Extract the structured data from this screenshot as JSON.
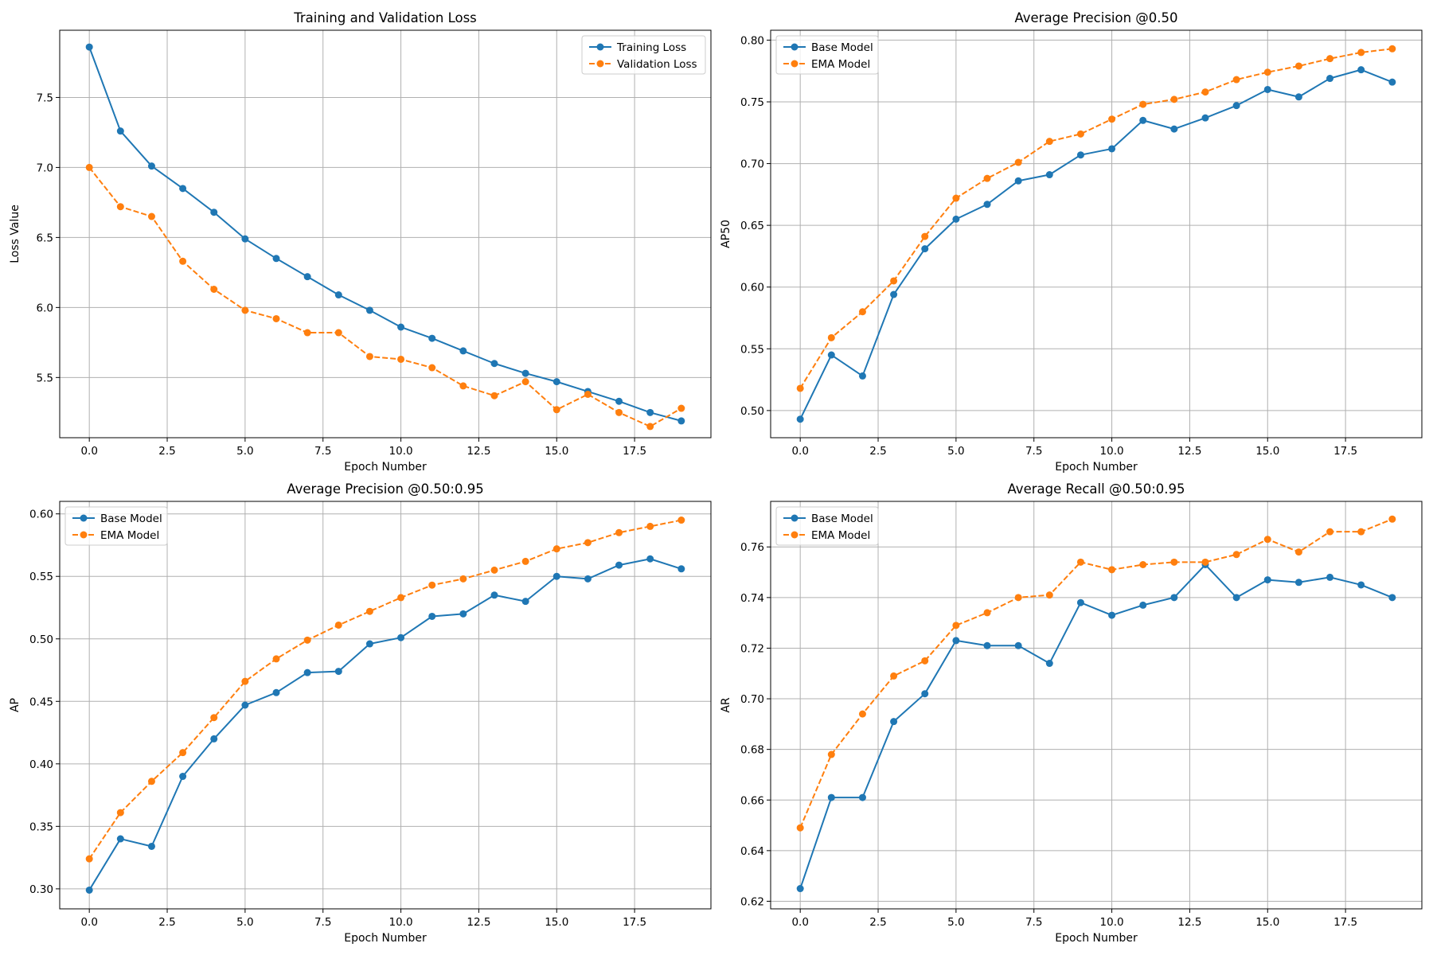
{
  "figure": {
    "colors": {
      "series_primary": "#1f77b4",
      "series_secondary": "#ff7f0e",
      "grid": "#b0b0b0",
      "axes": "#000000",
      "background": "#ffffff"
    }
  },
  "chart_data": [
    {
      "id": "loss",
      "type": "line",
      "title": "Training and Validation Loss",
      "xlabel": "Epoch Number",
      "ylabel": "Loss Value",
      "xlim": [
        -0.95,
        19.95
      ],
      "ylim": [
        5.07,
        7.98
      ],
      "xticks": [
        0,
        2.5,
        5,
        7.5,
        10,
        12.5,
        15,
        17.5
      ],
      "xtick_labels": [
        "0.0",
        "2.5",
        "5.0",
        "7.5",
        "10.0",
        "12.5",
        "15.0",
        "17.5"
      ],
      "yticks": [
        5.5,
        6.0,
        6.5,
        7.0,
        7.5
      ],
      "ytick_labels": [
        "5.5",
        "6.0",
        "6.5",
        "7.0",
        "7.5"
      ],
      "grid": true,
      "legend_position": "upper right",
      "x": [
        0,
        1,
        2,
        3,
        4,
        5,
        6,
        7,
        8,
        9,
        10,
        11,
        12,
        13,
        14,
        15,
        16,
        17,
        18,
        19
      ],
      "series": [
        {
          "name": "Training Loss",
          "style": "solid",
          "color": "#1f77b4",
          "values": [
            7.86,
            7.26,
            7.01,
            6.85,
            6.68,
            6.49,
            6.35,
            6.22,
            6.09,
            5.98,
            5.86,
            5.78,
            5.69,
            5.6,
            5.53,
            5.47,
            5.4,
            5.33,
            5.25,
            5.19
          ]
        },
        {
          "name": "Validation Loss",
          "style": "dashed",
          "color": "#ff7f0e",
          "values": [
            7.0,
            6.72,
            6.65,
            6.33,
            6.13,
            5.98,
            5.92,
            5.82,
            5.82,
            5.65,
            5.63,
            5.57,
            5.44,
            5.37,
            5.47,
            5.27,
            5.38,
            5.25,
            5.15,
            5.28
          ]
        }
      ]
    },
    {
      "id": "ap50",
      "type": "line",
      "title": "Average Precision @0.50",
      "xlabel": "Epoch Number",
      "ylabel": "AP50",
      "xlim": [
        -0.95,
        19.95
      ],
      "ylim": [
        0.478,
        0.808
      ],
      "xticks": [
        0,
        2.5,
        5,
        7.5,
        10,
        12.5,
        15,
        17.5
      ],
      "xtick_labels": [
        "0.0",
        "2.5",
        "5.0",
        "7.5",
        "10.0",
        "12.5",
        "15.0",
        "17.5"
      ],
      "yticks": [
        0.5,
        0.55,
        0.6,
        0.65,
        0.7,
        0.75,
        0.8
      ],
      "ytick_labels": [
        "0.50",
        "0.55",
        "0.60",
        "0.65",
        "0.70",
        "0.75",
        "0.80"
      ],
      "grid": true,
      "legend_position": "upper left",
      "x": [
        0,
        1,
        2,
        3,
        4,
        5,
        6,
        7,
        8,
        9,
        10,
        11,
        12,
        13,
        14,
        15,
        16,
        17,
        18,
        19
      ],
      "series": [
        {
          "name": "Base Model",
          "style": "solid",
          "color": "#1f77b4",
          "values": [
            0.493,
            0.545,
            0.528,
            0.594,
            0.631,
            0.655,
            0.667,
            0.686,
            0.691,
            0.707,
            0.712,
            0.735,
            0.728,
            0.737,
            0.747,
            0.76,
            0.754,
            0.769,
            0.776,
            0.766
          ]
        },
        {
          "name": "EMA Model",
          "style": "dashed",
          "color": "#ff7f0e",
          "values": [
            0.518,
            0.559,
            0.58,
            0.605,
            0.641,
            0.672,
            0.688,
            0.701,
            0.718,
            0.724,
            0.736,
            0.748,
            0.752,
            0.758,
            0.768,
            0.774,
            0.779,
            0.785,
            0.79,
            0.793
          ]
        }
      ]
    },
    {
      "id": "ap",
      "type": "line",
      "title": "Average Precision @0.50:0.95",
      "xlabel": "Epoch Number",
      "ylabel": "AP",
      "xlim": [
        -0.95,
        19.95
      ],
      "ylim": [
        0.284,
        0.61
      ],
      "xticks": [
        0,
        2.5,
        5,
        7.5,
        10,
        12.5,
        15,
        17.5
      ],
      "xtick_labels": [
        "0.0",
        "2.5",
        "5.0",
        "7.5",
        "10.0",
        "12.5",
        "15.0",
        "17.5"
      ],
      "yticks": [
        0.3,
        0.35,
        0.4,
        0.45,
        0.5,
        0.55,
        0.6
      ],
      "ytick_labels": [
        "0.30",
        "0.35",
        "0.40",
        "0.45",
        "0.50",
        "0.55",
        "0.60"
      ],
      "grid": true,
      "legend_position": "upper left",
      "x": [
        0,
        1,
        2,
        3,
        4,
        5,
        6,
        7,
        8,
        9,
        10,
        11,
        12,
        13,
        14,
        15,
        16,
        17,
        18,
        19
      ],
      "series": [
        {
          "name": "Base Model",
          "style": "solid",
          "color": "#1f77b4",
          "values": [
            0.299,
            0.34,
            0.334,
            0.39,
            0.42,
            0.447,
            0.457,
            0.473,
            0.474,
            0.496,
            0.501,
            0.518,
            0.52,
            0.535,
            0.53,
            0.55,
            0.548,
            0.559,
            0.564,
            0.556
          ]
        },
        {
          "name": "EMA Model",
          "style": "dashed",
          "color": "#ff7f0e",
          "values": [
            0.324,
            0.361,
            0.386,
            0.409,
            0.437,
            0.466,
            0.484,
            0.499,
            0.511,
            0.522,
            0.533,
            0.543,
            0.548,
            0.555,
            0.562,
            0.572,
            0.577,
            0.585,
            0.59,
            0.595
          ]
        }
      ]
    },
    {
      "id": "ar",
      "type": "line",
      "title": "Average Recall @0.50:0.95",
      "xlabel": "Epoch Number",
      "ylabel": "AR",
      "xlim": [
        -0.95,
        19.95
      ],
      "ylim": [
        0.617,
        0.778
      ],
      "xticks": [
        0,
        2.5,
        5,
        7.5,
        10,
        12.5,
        15,
        17.5
      ],
      "xtick_labels": [
        "0.0",
        "2.5",
        "5.0",
        "7.5",
        "10.0",
        "12.5",
        "15.0",
        "17.5"
      ],
      "yticks": [
        0.62,
        0.64,
        0.66,
        0.68,
        0.7,
        0.72,
        0.74,
        0.76
      ],
      "ytick_labels": [
        "0.62",
        "0.64",
        "0.66",
        "0.68",
        "0.70",
        "0.72",
        "0.74",
        "0.76"
      ],
      "grid": true,
      "legend_position": "upper left",
      "x": [
        0,
        1,
        2,
        3,
        4,
        5,
        6,
        7,
        8,
        9,
        10,
        11,
        12,
        13,
        14,
        15,
        16,
        17,
        18,
        19
      ],
      "series": [
        {
          "name": "Base Model",
          "style": "solid",
          "color": "#1f77b4",
          "values": [
            0.625,
            0.661,
            0.661,
            0.691,
            0.702,
            0.723,
            0.721,
            0.721,
            0.714,
            0.738,
            0.733,
            0.737,
            0.74,
            0.753,
            0.74,
            0.747,
            0.746,
            0.748,
            0.745,
            0.74
          ]
        },
        {
          "name": "EMA Model",
          "style": "dashed",
          "color": "#ff7f0e",
          "values": [
            0.649,
            0.678,
            0.694,
            0.709,
            0.715,
            0.729,
            0.734,
            0.74,
            0.741,
            0.754,
            0.751,
            0.753,
            0.754,
            0.754,
            0.757,
            0.763,
            0.758,
            0.766,
            0.766,
            0.771
          ]
        }
      ]
    }
  ]
}
